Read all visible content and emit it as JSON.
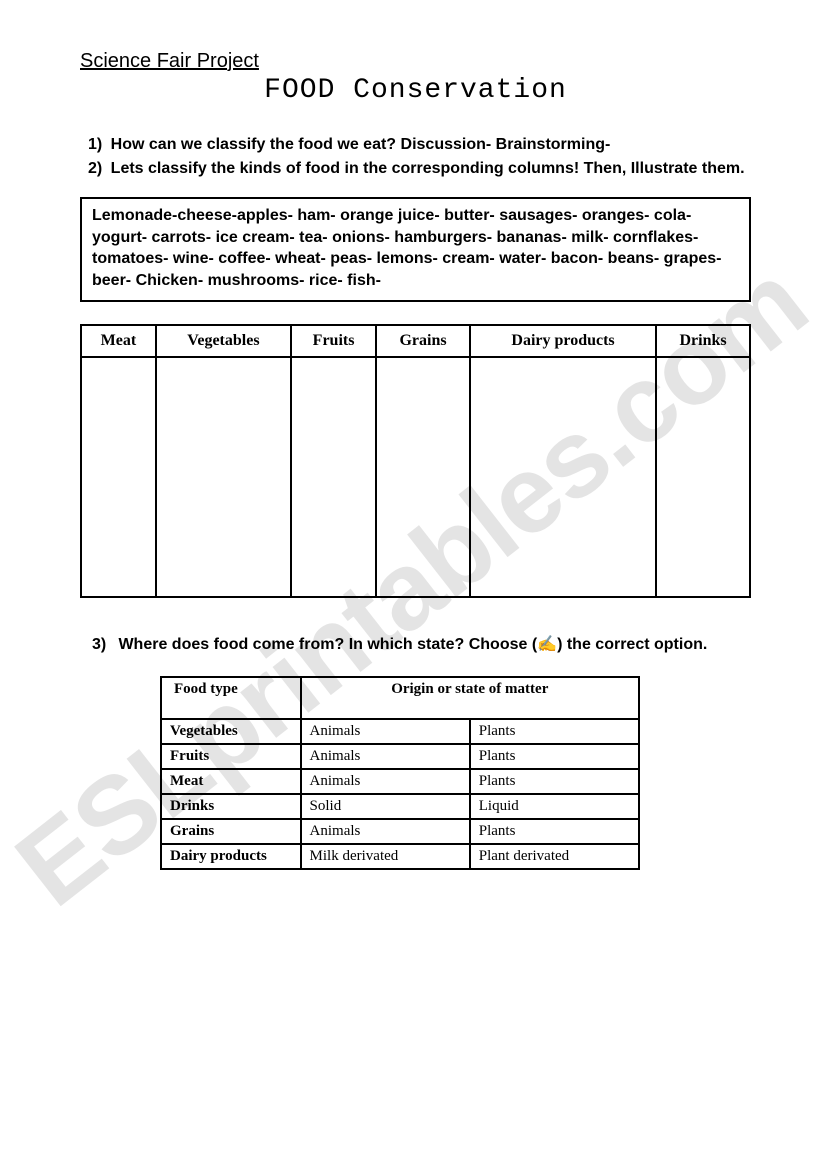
{
  "watermark": "ESLprintables.com",
  "header": {
    "project": "Science Fair Project",
    "title": "FOOD Conservation"
  },
  "questions": {
    "q1_num": "1",
    "q1": "How can we classify the food we eat? Discussion- Brainstorming-",
    "q2_num": "2",
    "q2": "Lets classify the kinds of food in the corresponding columns! Then, Illustrate them.",
    "q3_num": "3",
    "q3_prefix": "Where does food come from? In which state? Choose (",
    "q3_icon": "✍",
    "q3_suffix": ") the correct option."
  },
  "word_bank": "Lemonade-cheese-apples- ham- orange juice- butter- sausages- oranges- cola- yogurt- carrots- ice cream- tea- onions- hamburgers- bananas- milk- cornflakes-tomatoes- wine- coffee- wheat- peas- lemons- cream- water- bacon- beans- grapes- beer- Chicken- mushrooms- rice- fish-",
  "classify_table": {
    "columns": [
      "Meat",
      "Vegetables",
      "Fruits",
      "Grains",
      "Dairy products",
      "Drinks"
    ]
  },
  "origin_table": {
    "headers": {
      "col1": "Food type",
      "col2": "Origin or state of matter"
    },
    "rows": [
      {
        "label": "Vegetables",
        "opt1": "Animals",
        "opt2": "Plants"
      },
      {
        "label": "Fruits",
        "opt1": "Animals",
        "opt2": "Plants"
      },
      {
        "label": "Meat",
        "opt1": "Animals",
        "opt2": "Plants"
      },
      {
        "label": "Drinks",
        "opt1": "Solid",
        "opt2": "Liquid"
      },
      {
        "label": "Grains",
        "opt1": "Animals",
        "opt2": "Plants"
      },
      {
        "label": "Dairy products",
        "opt1": "Milk derivated",
        "opt2": "Plant derivated"
      }
    ]
  }
}
